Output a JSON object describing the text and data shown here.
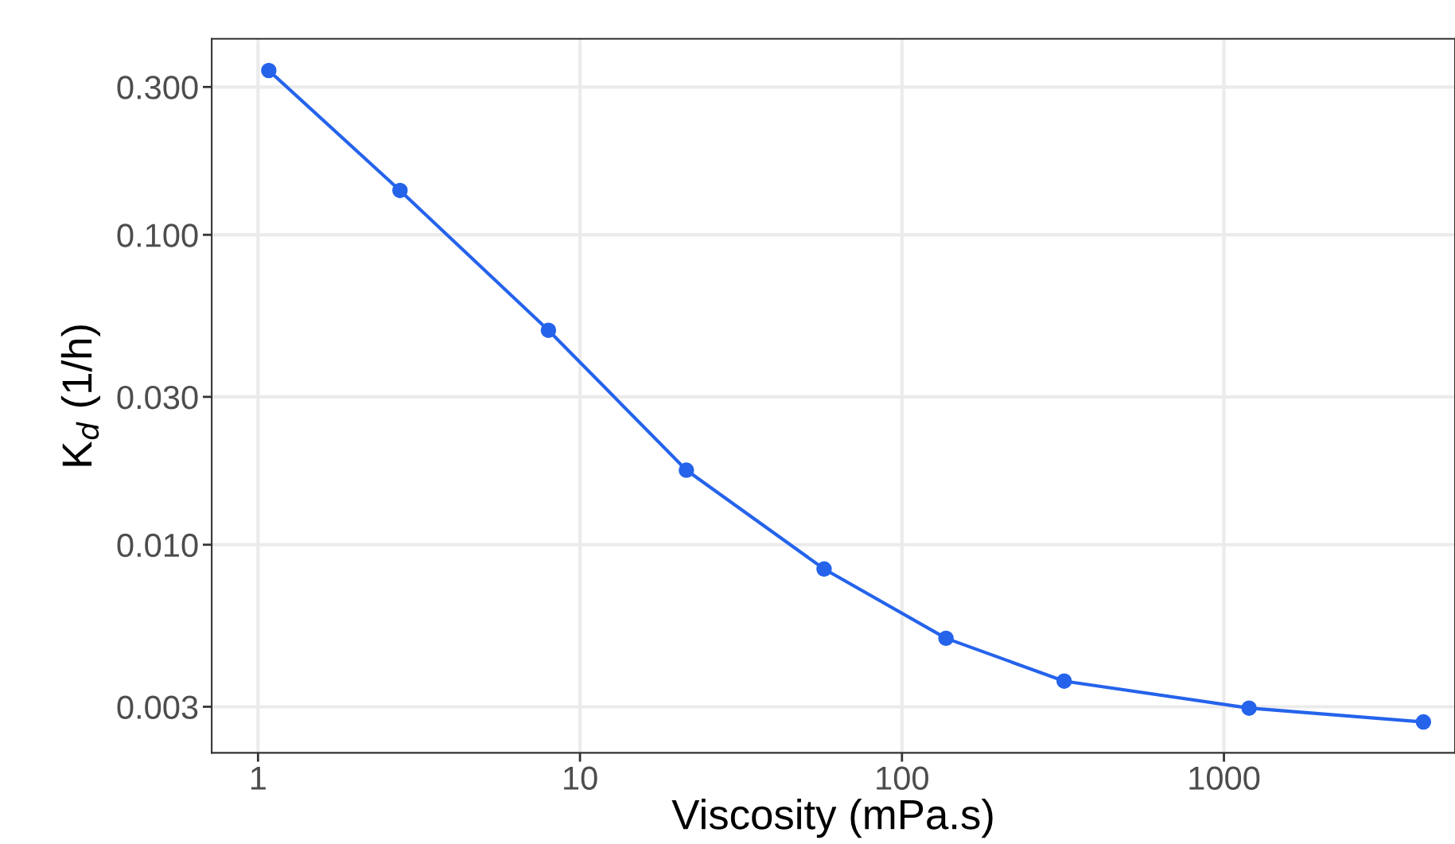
{
  "chart_data": {
    "type": "line",
    "xlabel": "Viscosity (mPa.s)",
    "ylabel": "K$_{d}$ (1/h)",
    "x": [
      1.08,
      2.76,
      7.98,
      21.4,
      57.3,
      137,
      319,
      1197,
      4165
    ],
    "series": [
      {
        "color": "#2563eb",
        "values": [
          0.339,
          0.139,
          0.0492,
          0.0174,
          0.00835,
          0.00499,
          0.00363,
          0.00297,
          0.00268
        ]
      }
    ],
    "log": "xy",
    "xlim": [
      0.718,
      5220
    ],
    "ylim": [
      0.00213,
      0.429
    ],
    "xticks": [
      1,
      10,
      100,
      1000
    ],
    "yticks": [
      {
        "value": 0.003,
        "label": "0.003"
      },
      {
        "value": 0.01,
        "label": "0.010"
      },
      {
        "value": 0.03,
        "label": "0.030"
      },
      {
        "value": 0.1,
        "label": "0.100"
      },
      {
        "value": 0.3,
        "label": "0.300"
      }
    ],
    "grid": true,
    "marker": "circle",
    "line_style": "solid"
  }
}
